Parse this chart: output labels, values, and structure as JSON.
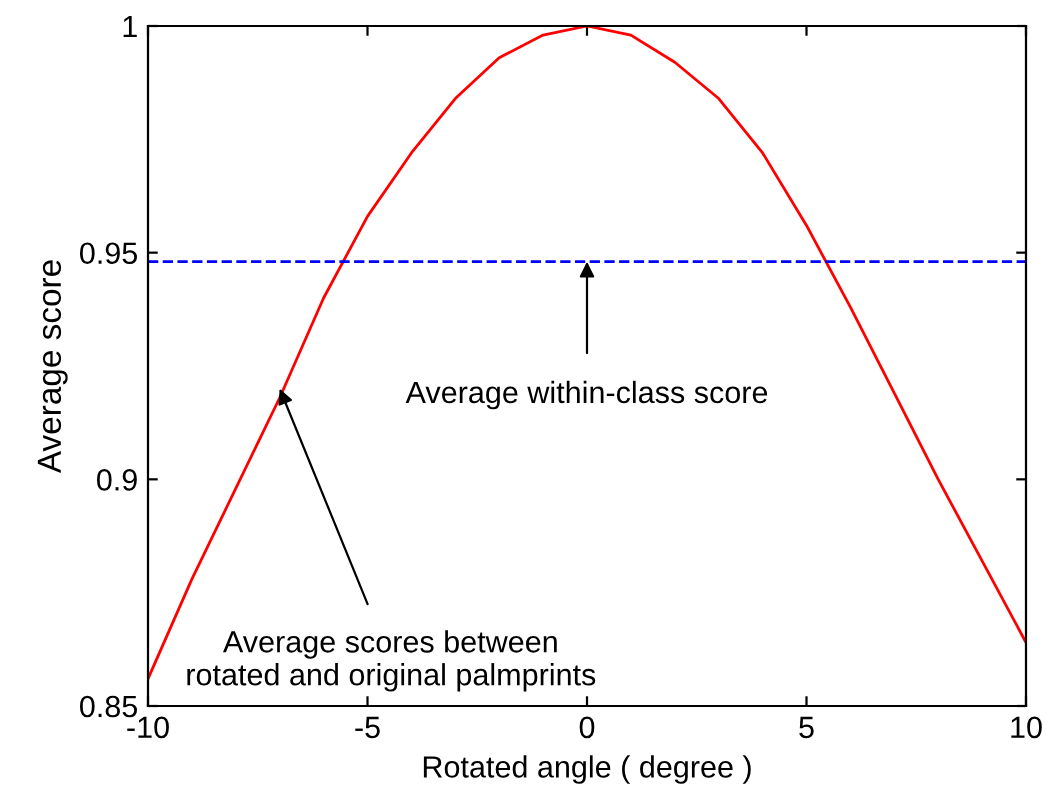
{
  "chart_data": {
    "type": "line",
    "xlabel": "Rotated angle ( degree )",
    "ylabel": "Average score",
    "x": [
      -10,
      -9,
      -8,
      -7,
      -6,
      -5,
      -4,
      -3,
      -2,
      -1,
      0,
      1,
      2,
      3,
      4,
      5,
      6,
      7,
      8,
      9,
      10
    ],
    "series": [
      {
        "color": "#ff0000",
        "values": [
          0.856,
          0.878,
          0.898,
          0.918,
          0.94,
          0.958,
          0.972,
          0.984,
          0.993,
          0.998,
          1.0,
          0.998,
          0.992,
          0.984,
          0.972,
          0.956,
          0.938,
          0.919,
          0.9,
          0.882,
          0.864
        ]
      }
    ],
    "xlim": [
      -10,
      10
    ],
    "xticks": [
      -10,
      -5,
      0,
      5,
      10
    ],
    "ylim": [
      0.85,
      1
    ],
    "yticks": [
      0.85,
      0.9,
      0.95,
      1
    ],
    "ref_lines": [
      {
        "axis": "y",
        "value": 0.948,
        "color": "#0000ff",
        "line_style": "dashed"
      }
    ],
    "annotations": [
      {
        "text": "Average within-class score",
        "x": 0,
        "y": 0.948
      },
      {
        "text": "Average scores between\nrotated and original palmprints",
        "x": -7,
        "y": 0.92
      }
    ],
    "grid": false,
    "legend": false,
    "marker": "none",
    "line_style": "solid"
  }
}
